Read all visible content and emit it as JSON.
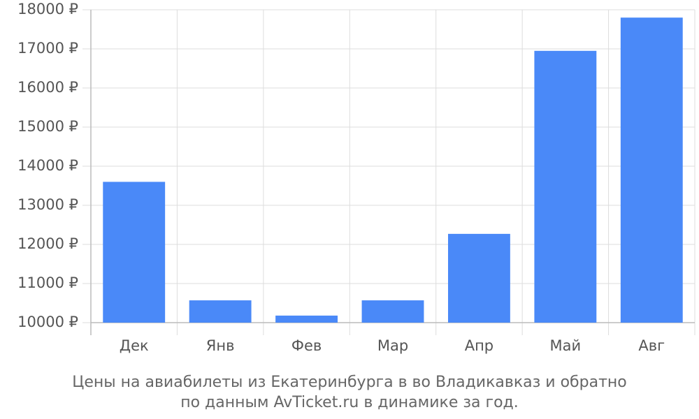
{
  "chart_data": {
    "type": "bar",
    "title": [
      "Цены на авиабилеты из Екатеринбурга в во Владикавказ и обратно",
      "по данным AvTicket.ru в динамике за год."
    ],
    "categories": [
      "Дек",
      "Янв",
      "Фев",
      "Мар",
      "Апр",
      "Май",
      "Авг"
    ],
    "values": [
      13600,
      10570,
      10180,
      10570,
      12270,
      16950,
      17800
    ],
    "color": "#4a89f8",
    "ylim": [
      10000,
      18000
    ],
    "yticks": [
      {
        "value": 10000,
        "label": "10000 ₽"
      },
      {
        "value": 11000,
        "label": "11000 ₽"
      },
      {
        "value": 12000,
        "label": "12000 ₽"
      },
      {
        "value": 13000,
        "label": "13000 ₽"
      },
      {
        "value": 14000,
        "label": "14000 ₽"
      },
      {
        "value": 15000,
        "label": "15000 ₽"
      },
      {
        "value": 16000,
        "label": "16000 ₽"
      },
      {
        "value": 17000,
        "label": "17000 ₽"
      },
      {
        "value": 18000,
        "label": "18000 ₽"
      }
    ],
    "grid": true
  }
}
